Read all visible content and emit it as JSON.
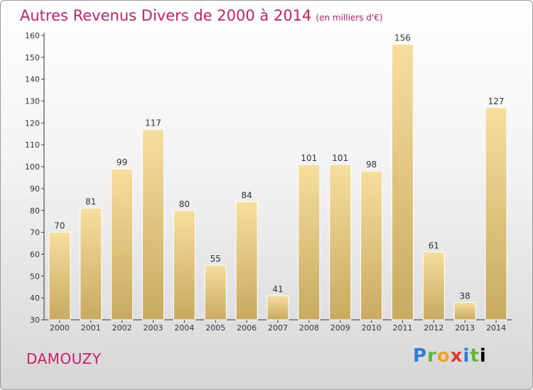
{
  "header": {
    "title": "Autres Revenus Divers de 2000 à 2014",
    "unit": "(en milliers d'€)"
  },
  "footer": {
    "commune": "DAMOUZY",
    "logo_letters": [
      "P",
      "r",
      "o",
      "x",
      "i",
      "t",
      "i"
    ]
  },
  "colors": {
    "title": "#c8206a",
    "bar_light": "#f5dc9a",
    "bar_dark": "#c9ab62"
  },
  "chart_data": {
    "type": "bar",
    "categories": [
      "2000",
      "2001",
      "2002",
      "2003",
      "2004",
      "2005",
      "2006",
      "2007",
      "2008",
      "2009",
      "2010",
      "2011",
      "2012",
      "2013",
      "2014"
    ],
    "values": [
      70,
      81,
      99,
      117,
      80,
      55,
      84,
      41,
      101,
      101,
      98,
      156,
      61,
      38,
      127
    ],
    "ylim": [
      30,
      160
    ],
    "yticks": [
      30,
      40,
      50,
      60,
      70,
      80,
      90,
      100,
      110,
      120,
      130,
      140,
      150,
      160
    ],
    "grid": false,
    "legend": "none"
  }
}
